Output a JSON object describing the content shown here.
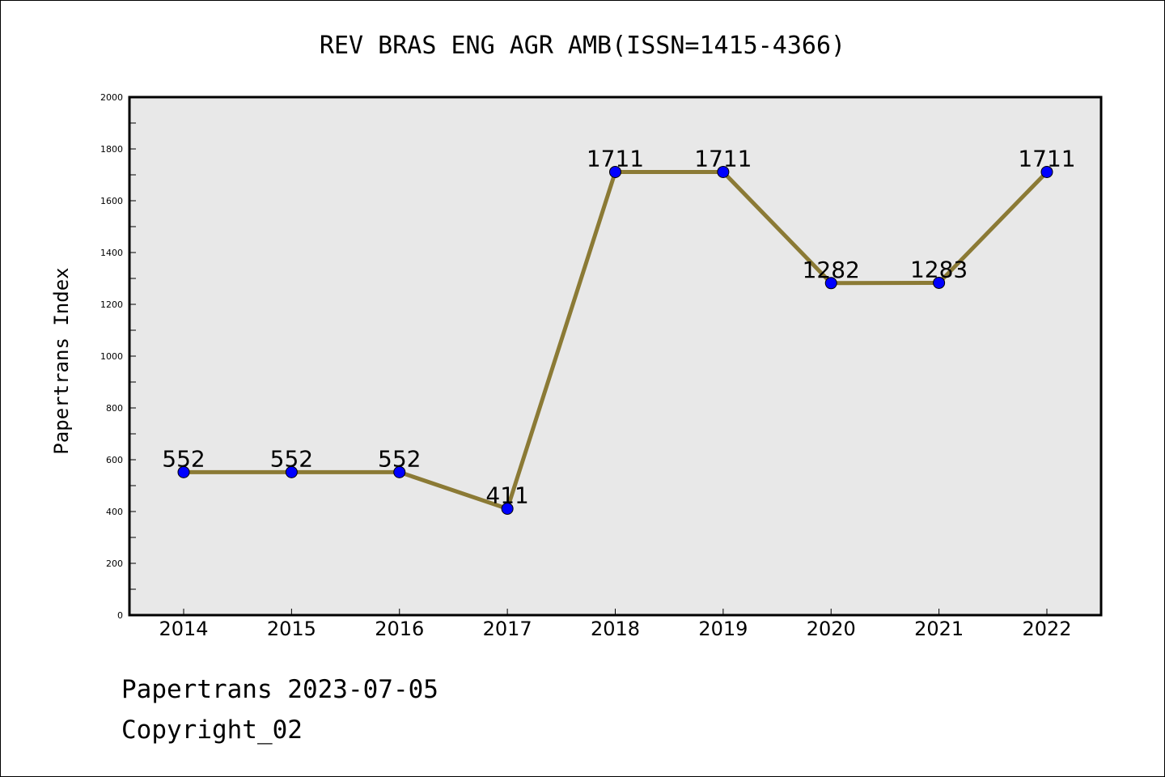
{
  "chart_data": {
    "type": "line",
    "title": "REV BRAS ENG AGR AMB(ISSN=1415-4366)",
    "ylabel": "Papertrans Index",
    "xlabel": "",
    "categories": [
      "2014",
      "2015",
      "2016",
      "2017",
      "2018",
      "2019",
      "2020",
      "2021",
      "2022"
    ],
    "values": [
      552,
      552,
      552,
      411,
      1711,
      1711,
      1282,
      1283,
      1711
    ],
    "ylim": [
      0,
      2000
    ],
    "yticks": [
      0,
      200,
      400,
      600,
      800,
      1000,
      1200,
      1400,
      1600,
      1800,
      2000
    ],
    "grid": false,
    "colors": {
      "line": "#8b7a35",
      "marker": "#0000ff",
      "plot_bg": "#e8e8e8"
    }
  },
  "footer": {
    "line1": "Papertrans 2023-07-05",
    "line2": "Copyright_02"
  }
}
